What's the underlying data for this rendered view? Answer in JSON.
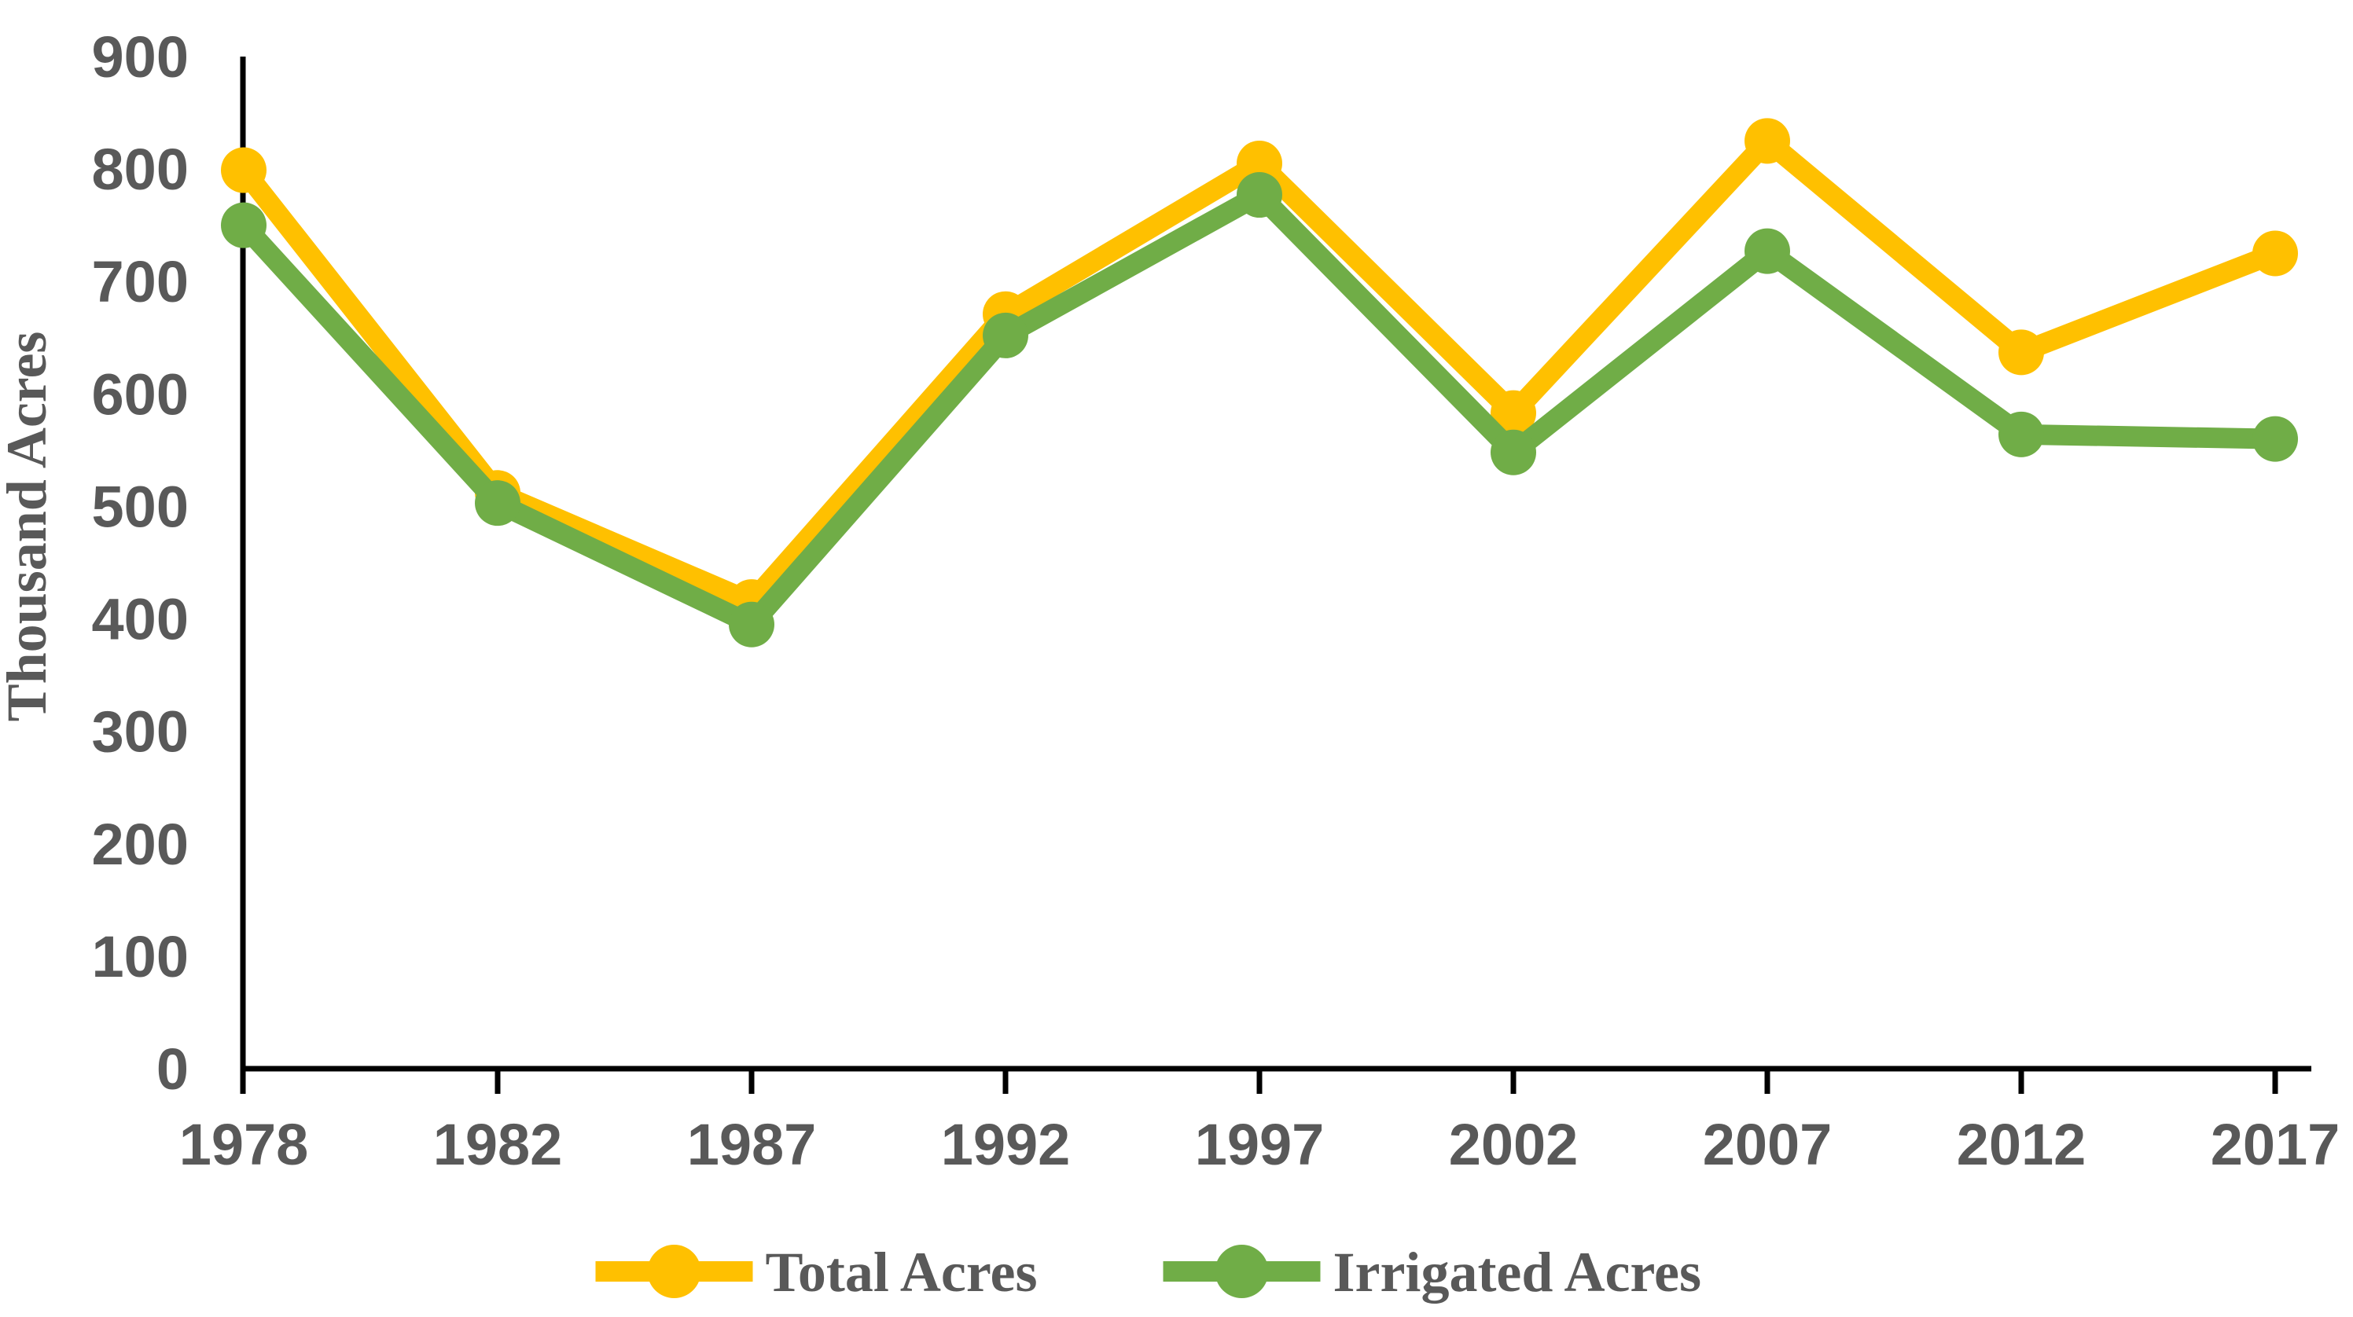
{
  "chart_data": {
    "type": "line",
    "title": "",
    "xlabel": "",
    "ylabel": "Thousand Acres",
    "categories": [
      "1978",
      "1982",
      "1987",
      "1992",
      "1997",
      "2002",
      "2007",
      "2012",
      "2017"
    ],
    "series": [
      {
        "name": "Total Acres",
        "color": "#FFC000",
        "values": [
          799,
          512,
          415,
          671,
          805,
          583,
          825,
          637,
          725
        ]
      },
      {
        "name": "Irrigated Acres",
        "color": "#70AD47",
        "values": [
          750,
          503,
          395,
          652,
          777,
          548,
          727,
          564,
          560
        ]
      }
    ],
    "ylim": [
      0,
      900
    ],
    "ytick_step": 100,
    "yticks": [
      0,
      100,
      200,
      300,
      400,
      500,
      600,
      700,
      800,
      900
    ],
    "grid": false,
    "legend_position": "bottom",
    "marker": "circle",
    "colors": {
      "axis_line": "#000000",
      "tick_label": "#595959",
      "axis_title": "#595959"
    }
  }
}
